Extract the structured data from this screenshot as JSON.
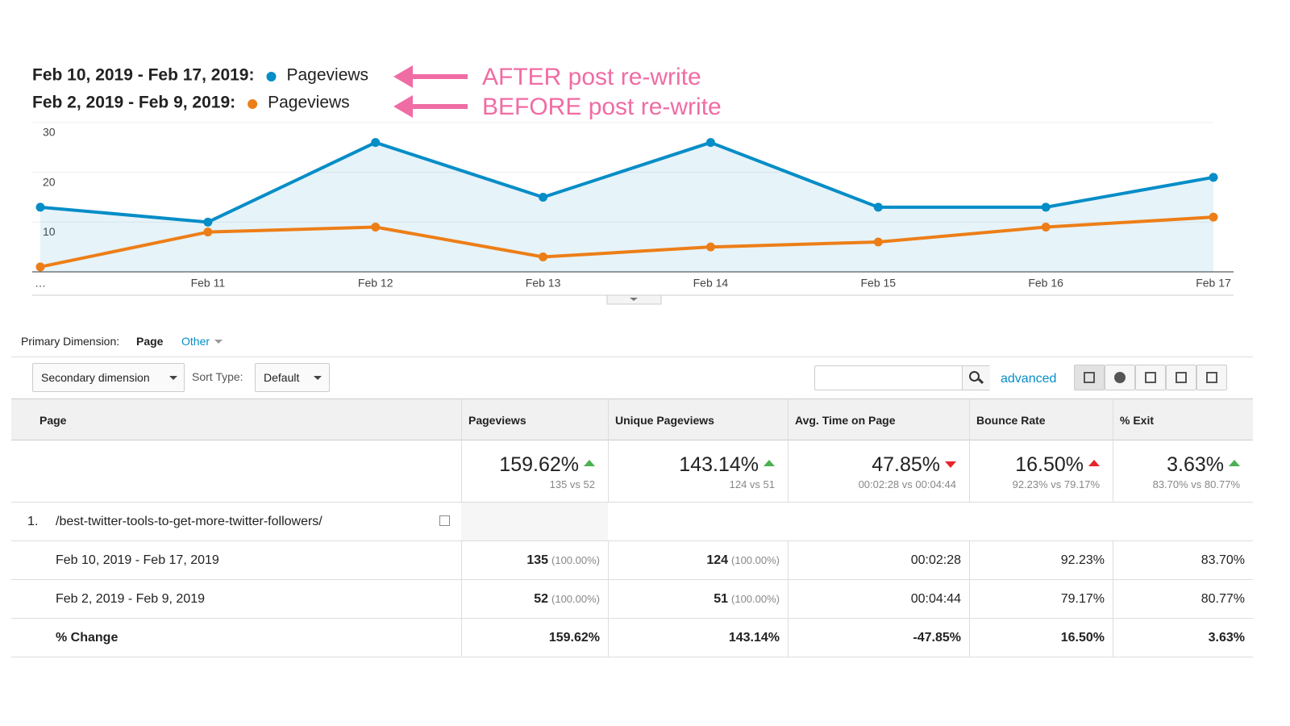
{
  "chart_data": {
    "type": "line",
    "categories": [
      "…",
      "Feb 11",
      "Feb 12",
      "Feb 13",
      "Feb 14",
      "Feb 15",
      "Feb 16",
      "Feb 17"
    ],
    "series": [
      {
        "name": "Pageviews",
        "range": "Feb 10, 2019 - Feb 17, 2019:",
        "color": "#058dc7",
        "area": true,
        "values": [
          13,
          10,
          26,
          15,
          26,
          13,
          13,
          19
        ]
      },
      {
        "name": "Pageviews",
        "range": "Feb 2, 2019 - Feb 9, 2019:",
        "color": "#ed7e17",
        "area": false,
        "values": [
          1,
          8,
          9,
          3,
          5,
          6,
          9,
          11
        ]
      }
    ],
    "ylim": [
      0,
      30
    ],
    "yticks": [
      10,
      20,
      30
    ],
    "grid": true,
    "annotations": [
      "AFTER post re-write",
      "BEFORE post re-write"
    ],
    "annotation_color": "#f06ca4"
  },
  "controls": {
    "primary_dimension_label": "Primary Dimension:",
    "primary_dimension": "Page",
    "other": "Other",
    "secondary_dimension": "Secondary dimension",
    "sort_type_label": "Sort Type:",
    "sort_type": "Default",
    "advanced": "advanced"
  },
  "table": {
    "columns": [
      "Page",
      "Pageviews",
      "Unique Pageviews",
      "Avg. Time on Page",
      "Bounce Rate",
      "% Exit"
    ],
    "summary": [
      {
        "change": "159.62%",
        "arrow": "up",
        "arrow_color": "#4cb050",
        "compare": "135 vs 52"
      },
      {
        "change": "143.14%",
        "arrow": "up",
        "arrow_color": "#4cb050",
        "compare": "124 vs 51"
      },
      {
        "change": "47.85%",
        "arrow": "down",
        "arrow_color": "#e8232b",
        "compare": "00:02:28 vs 00:04:44"
      },
      {
        "change": "16.50%",
        "arrow": "up",
        "arrow_color": "#e8232b",
        "compare": "92.23% vs 79.17%"
      },
      {
        "change": "3.63%",
        "arrow": "up",
        "arrow_color": "#4cb050",
        "compare": "83.70% vs 80.77%"
      }
    ],
    "page_index": "1.",
    "page_path": "/best-twitter-tools-to-get-more-twitter-followers/",
    "rows": [
      {
        "label": "Feb 10, 2019 - Feb 17, 2019",
        "bold": false,
        "cells": [
          [
            "135",
            "(100.00%)"
          ],
          [
            "124",
            "(100.00%)"
          ],
          [
            "00:02:28"
          ],
          [
            "92.23%"
          ],
          [
            "83.70%"
          ]
        ]
      },
      {
        "label": "Feb 2, 2019 - Feb 9, 2019",
        "bold": false,
        "cells": [
          [
            "52",
            "(100.00%)"
          ],
          [
            "51",
            "(100.00%)"
          ],
          [
            "00:04:44"
          ],
          [
            "79.17%"
          ],
          [
            "80.77%"
          ]
        ]
      },
      {
        "label": "% Change",
        "bold": true,
        "cells": [
          [
            "159.62%"
          ],
          [
            "143.14%"
          ],
          [
            "-47.85%"
          ],
          [
            "16.50%"
          ],
          [
            "3.63%"
          ]
        ]
      }
    ]
  }
}
